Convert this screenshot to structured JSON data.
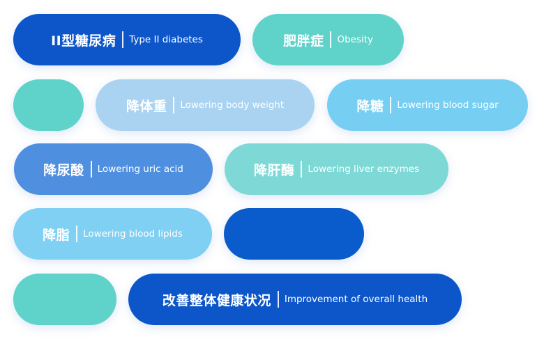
{
  "tags": [
    {
      "zh": "II型糖尿病",
      "en": "Type II diabetes"
    },
    {
      "zh": "肥胖症",
      "en": "Obesity"
    },
    {
      "zh": "降体重",
      "en": "Lowering body weight"
    },
    {
      "zh": "降糖",
      "en": "Lowering blood sugar"
    },
    {
      "zh": "降尿酸",
      "en": "Lowering uric acid"
    },
    {
      "zh": "降肝酶",
      "en": "Lowering liver enzymes"
    },
    {
      "zh": "降脂",
      "en": "Lowering blood lipids"
    },
    {
      "zh": "改善整体健康状况",
      "en": "Improvement of overall health"
    }
  ],
  "colors": {
    "navy": "#0d56c9",
    "teal": "#5fd2c9",
    "pale_blue": "#a9d3f1",
    "sky_blue": "#76cef2",
    "mid_blue": "#4f8fdf",
    "mint": "#7ed9d6",
    "light_blue": "#7fd0f2",
    "royal_blue": "#0a5bcb"
  }
}
